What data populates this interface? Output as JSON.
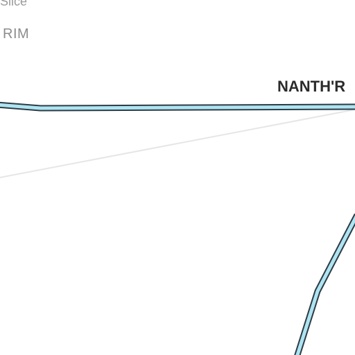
{
  "map": {
    "labels": {
      "slice": "Slice",
      "rim": "RIM",
      "nanth": "NANTH'R"
    },
    "colors": {
      "background": "#ffffff",
      "road_fill": "#aee4f2",
      "road_casing": "#2e3b44",
      "thin_line": "#e6e6e6",
      "label_dark": "#2b2b2b",
      "label_grey": "#8c8c8c"
    }
  }
}
